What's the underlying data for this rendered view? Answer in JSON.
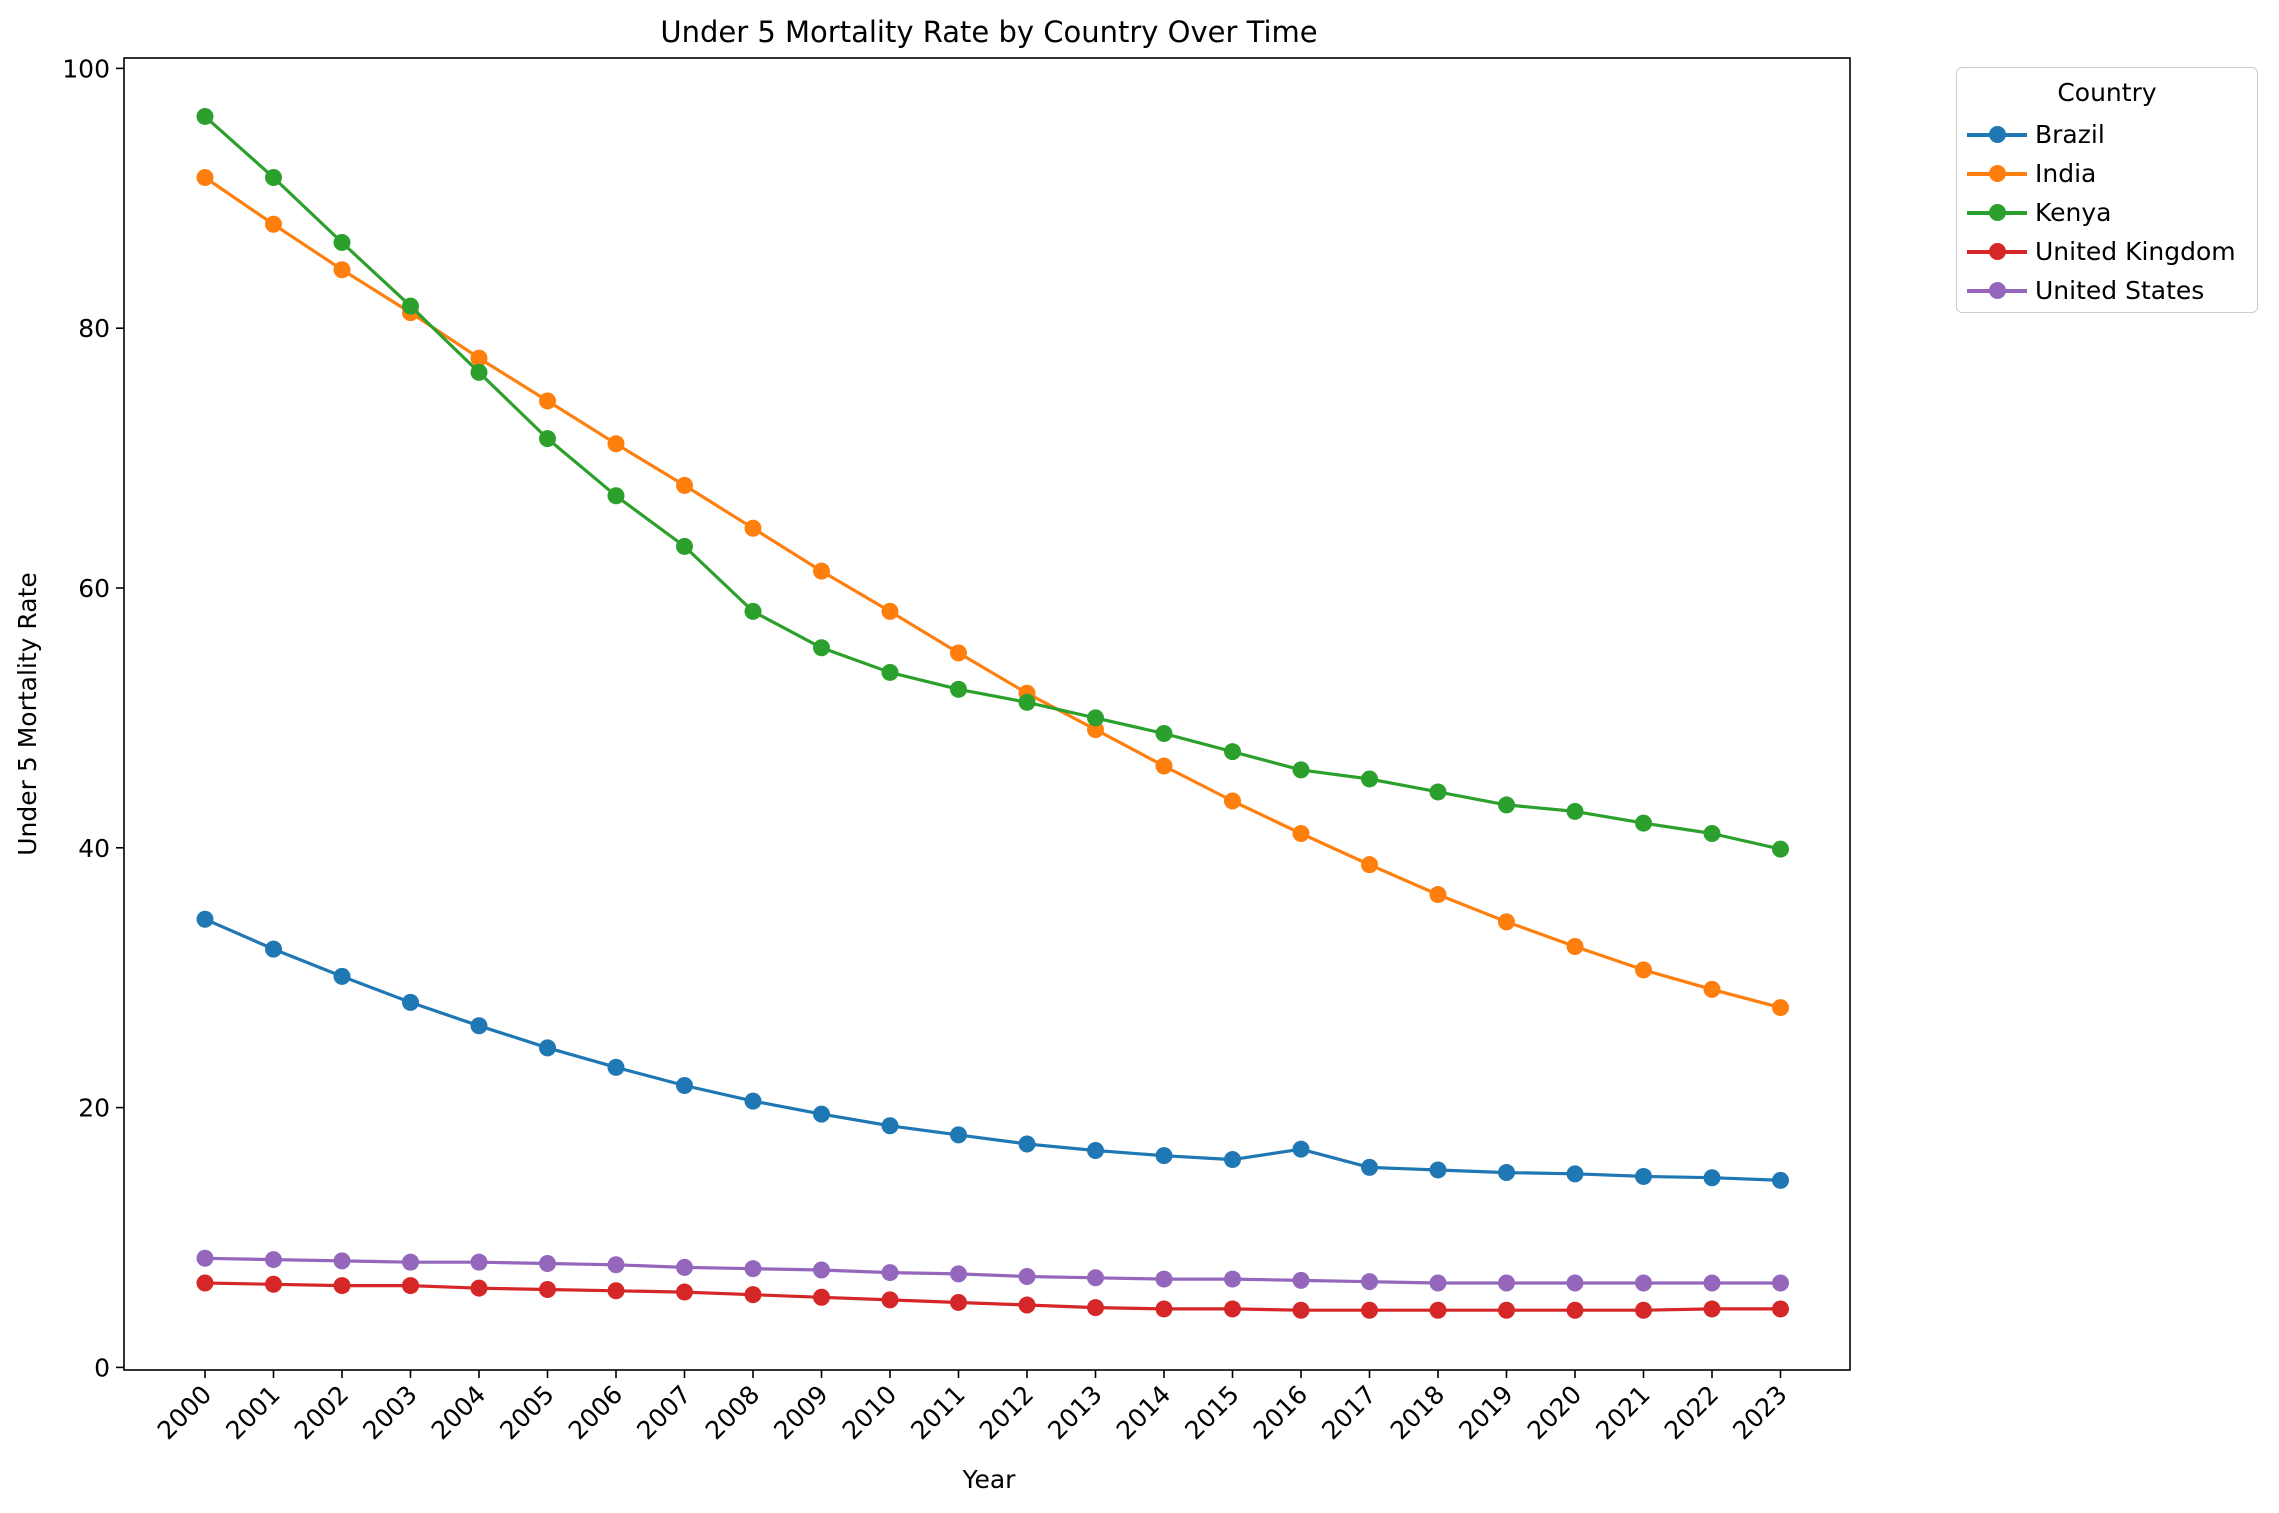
{
  "chart_data": {
    "type": "line",
    "title": "Under 5 Mortality Rate by Country Over Time",
    "xlabel": "Year",
    "ylabel": "Under 5 Mortality Rate",
    "x": [
      "2000",
      "2001",
      "2002",
      "2003",
      "2004",
      "2005",
      "2006",
      "2007",
      "2008",
      "2009",
      "2010",
      "2011",
      "2012",
      "2013",
      "2014",
      "2015",
      "2016",
      "2017",
      "2018",
      "2019",
      "2020",
      "2021",
      "2022",
      "2023"
    ],
    "ylim": [
      -0.2,
      100.8
    ],
    "yticks": [
      0,
      20,
      40,
      60,
      80,
      100
    ],
    "grid": false,
    "legend": {
      "title": "Country",
      "placement": "outside-top-right"
    },
    "series": [
      {
        "name": "Brazil",
        "color": "#1f77b4",
        "values": [
          34.5,
          32.2,
          30.1,
          28.1,
          26.3,
          24.6,
          23.1,
          21.7,
          20.5,
          19.5,
          18.6,
          17.9,
          17.2,
          16.7,
          16.3,
          16.0,
          16.8,
          15.4,
          15.2,
          15.0,
          14.9,
          14.7,
          14.6,
          14.4
        ]
      },
      {
        "name": "India",
        "color": "#ff7f0e",
        "values": [
          91.6,
          88.0,
          84.5,
          81.2,
          77.7,
          74.4,
          71.1,
          67.9,
          64.6,
          61.3,
          58.2,
          55.0,
          51.9,
          49.1,
          46.3,
          43.6,
          41.1,
          38.7,
          36.4,
          34.3,
          32.4,
          30.6,
          29.1,
          27.7
        ]
      },
      {
        "name": "Kenya",
        "color": "#2ca02c",
        "values": [
          96.3,
          91.6,
          86.6,
          81.7,
          76.6,
          71.5,
          67.1,
          63.2,
          58.2,
          55.4,
          53.5,
          52.2,
          51.2,
          50.0,
          48.8,
          47.4,
          46.0,
          45.3,
          44.3,
          43.3,
          42.8,
          41.9,
          41.1,
          39.9
        ]
      },
      {
        "name": "United Kingdom",
        "color": "#d62728",
        "values": [
          6.5,
          6.4,
          6.3,
          6.3,
          6.1,
          6.0,
          5.9,
          5.8,
          5.6,
          5.4,
          5.2,
          5.0,
          4.8,
          4.6,
          4.5,
          4.5,
          4.4,
          4.4,
          4.4,
          4.4,
          4.4,
          4.4,
          4.5,
          4.5
        ]
      },
      {
        "name": "United States",
        "color": "#9467bd",
        "values": [
          8.4,
          8.3,
          8.2,
          8.1,
          8.1,
          8.0,
          7.9,
          7.7,
          7.6,
          7.5,
          7.3,
          7.2,
          7.0,
          6.9,
          6.8,
          6.8,
          6.7,
          6.6,
          6.5,
          6.5,
          6.5,
          6.5,
          6.5,
          6.5
        ]
      }
    ]
  }
}
